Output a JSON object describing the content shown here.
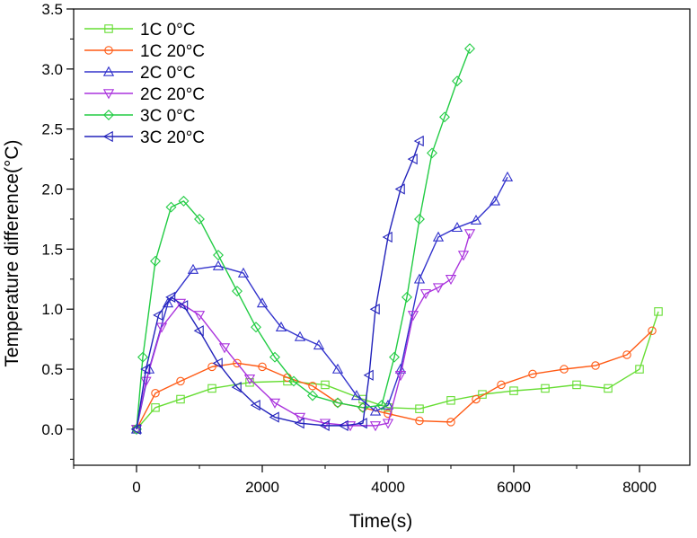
{
  "chart_data": {
    "type": "line",
    "title": "",
    "xlabel": "Time(s)",
    "ylabel": "Temperature difference(°C)",
    "xlim": [
      -1000,
      8800
    ],
    "ylim": [
      -0.3,
      3.5
    ],
    "grid": false,
    "legend_position": "top-left",
    "x_ticks": [
      0,
      2000,
      4000,
      6000,
      8000
    ],
    "x_tick_labels": [
      "0",
      "2000",
      "4000",
      "6000",
      "8000"
    ],
    "y_ticks": [
      0.0,
      0.5,
      1.0,
      1.5,
      2.0,
      2.5,
      3.0,
      3.5
    ],
    "y_tick_labels": [
      "0.0",
      "0.5",
      "1.0",
      "1.5",
      "2.0",
      "2.5",
      "3.0",
      "3.5"
    ],
    "series": [
      {
        "name": "1C 0°C",
        "color": "#66dd33",
        "marker": "square",
        "x": [
          0,
          300,
          700,
          1200,
          1800,
          2400,
          3000,
          3600,
          4000,
          4500,
          5000,
          5500,
          6000,
          6500,
          7000,
          7500,
          8000,
          8300
        ],
        "y": [
          0.0,
          0.18,
          0.25,
          0.34,
          0.39,
          0.4,
          0.37,
          0.25,
          0.18,
          0.17,
          0.24,
          0.29,
          0.32,
          0.34,
          0.37,
          0.34,
          0.5,
          0.98
        ]
      },
      {
        "name": "1C 20°C",
        "color": "#ff5a14",
        "marker": "circle",
        "x": [
          0,
          300,
          700,
          1200,
          1600,
          2000,
          2400,
          2800,
          3200,
          3600,
          4000,
          4500,
          5000,
          5400,
          5800,
          6300,
          6800,
          7300,
          7800,
          8200
        ],
        "y": [
          0.0,
          0.3,
          0.4,
          0.52,
          0.55,
          0.52,
          0.43,
          0.36,
          0.22,
          0.18,
          0.13,
          0.07,
          0.06,
          0.25,
          0.37,
          0.46,
          0.5,
          0.53,
          0.62,
          0.82
        ]
      },
      {
        "name": "2C 0°C",
        "color": "#3333cc",
        "marker": "triangle-up",
        "x": [
          0,
          200,
          500,
          900,
          1300,
          1700,
          2000,
          2300,
          2600,
          2900,
          3200,
          3500,
          3800,
          4000,
          4200,
          4500,
          4800,
          5100,
          5400,
          5700,
          5900
        ],
        "y": [
          0.0,
          0.5,
          1.05,
          1.33,
          1.36,
          1.3,
          1.05,
          0.85,
          0.77,
          0.7,
          0.5,
          0.28,
          0.15,
          0.2,
          0.5,
          1.25,
          1.6,
          1.68,
          1.74,
          1.9,
          2.1
        ]
      },
      {
        "name": "2C 20°C",
        "color": "#aa33dd",
        "marker": "triangle-down",
        "x": [
          0,
          150,
          400,
          700,
          1000,
          1400,
          1800,
          2200,
          2600,
          3000,
          3400,
          3800,
          4000,
          4200,
          4400,
          4600,
          4800,
          5000,
          5200,
          5300
        ],
        "y": [
          0.0,
          0.4,
          0.85,
          1.05,
          0.95,
          0.68,
          0.42,
          0.22,
          0.1,
          0.05,
          0.03,
          0.03,
          0.05,
          0.45,
          0.95,
          1.13,
          1.18,
          1.25,
          1.45,
          1.63
        ]
      },
      {
        "name": "3C 0°C",
        "color": "#22cc44",
        "marker": "diamond",
        "x": [
          0,
          100,
          300,
          550,
          750,
          1000,
          1300,
          1600,
          1900,
          2200,
          2500,
          2800,
          3200,
          3600,
          3900,
          4100,
          4300,
          4500,
          4700,
          4900,
          5100,
          5300
        ],
        "y": [
          0.0,
          0.6,
          1.4,
          1.85,
          1.9,
          1.75,
          1.45,
          1.15,
          0.85,
          0.6,
          0.4,
          0.28,
          0.22,
          0.18,
          0.2,
          0.6,
          1.1,
          1.75,
          2.3,
          2.6,
          2.9,
          3.17
        ]
      },
      {
        "name": "3C 20°C",
        "color": "#2222bb",
        "marker": "triangle-left",
        "x": [
          0,
          150,
          350,
          550,
          750,
          1000,
          1300,
          1600,
          1900,
          2200,
          2600,
          3000,
          3300,
          3600,
          3700,
          3800,
          4000,
          4200,
          4400,
          4500
        ],
        "y": [
          0.0,
          0.5,
          0.95,
          1.1,
          1.03,
          0.82,
          0.55,
          0.35,
          0.2,
          0.1,
          0.05,
          0.03,
          0.03,
          0.05,
          0.45,
          1.0,
          1.6,
          2.0,
          2.25,
          2.4
        ]
      }
    ]
  }
}
